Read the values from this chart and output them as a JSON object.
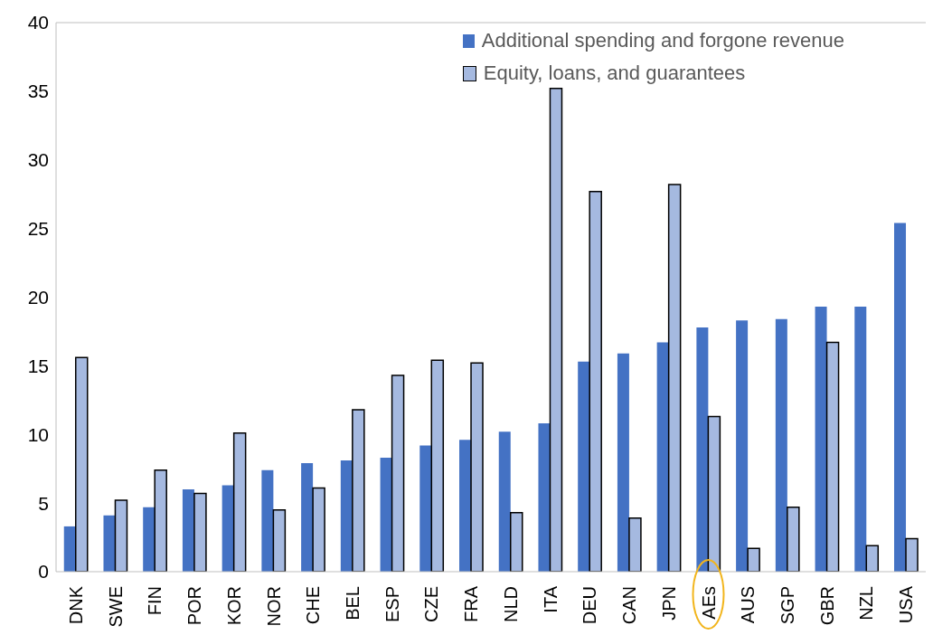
{
  "chart_data": {
    "type": "bar",
    "categories": [
      "DNK",
      "SWE",
      "FIN",
      "POR",
      "KOR",
      "NOR",
      "CHE",
      "BEL",
      "ESP",
      "CZE",
      "FRA",
      "NLD",
      "ITA",
      "DEU",
      "CAN",
      "JPN",
      "AEs",
      "AUS",
      "SGP",
      "GBR",
      "NZL",
      "USA"
    ],
    "series": [
      {
        "name": "Additional spending and forgone revenue",
        "color": "#4472c4",
        "values": [
          3.3,
          4.1,
          4.7,
          6.0,
          6.3,
          7.4,
          7.9,
          8.1,
          8.3,
          9.2,
          9.6,
          10.2,
          10.8,
          15.3,
          15.9,
          16.7,
          17.8,
          18.3,
          18.4,
          19.3,
          19.3,
          25.4
        ]
      },
      {
        "name": "Equity, loans, and guarantees",
        "color": "#a5b9e0",
        "values": [
          15.6,
          5.2,
          7.4,
          5.7,
          10.1,
          4.5,
          6.1,
          11.8,
          14.3,
          15.4,
          15.2,
          4.3,
          35.2,
          27.7,
          3.9,
          28.2,
          11.3,
          1.7,
          4.7,
          16.7,
          1.9,
          2.4
        ]
      }
    ],
    "ylim": [
      0,
      40
    ],
    "yticks": [
      0,
      5,
      10,
      15,
      20,
      25,
      30,
      35,
      40
    ],
    "grid": false,
    "legend": "top right"
  }
}
